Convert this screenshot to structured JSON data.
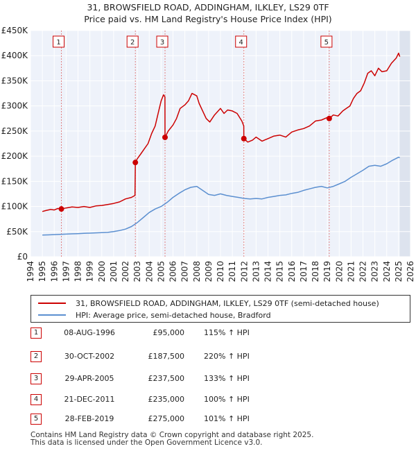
{
  "chart_data": {
    "type": "line",
    "title": "31, BROWSFIELD ROAD, ADDINGHAM, ILKLEY, LS29 0TF",
    "subtitle": "Price paid vs. HM Land Registry's House Price Index (HPI)",
    "xlim": [
      1994,
      2026
    ],
    "ylim": [
      0,
      450000
    ],
    "x_ticks": [
      1994,
      1995,
      1996,
      1997,
      1998,
      1999,
      2000,
      2001,
      2002,
      2003,
      2004,
      2005,
      2006,
      2007,
      2008,
      2009,
      2010,
      2011,
      2012,
      2013,
      2014,
      2015,
      2016,
      2017,
      2018,
      2019,
      2020,
      2021,
      2022,
      2023,
      2024,
      2025,
      2026
    ],
    "x_tick_labels": [
      "1994",
      "1995",
      "1996",
      "1997",
      "1998",
      "1999",
      "2000",
      "2001",
      "2002",
      "2003",
      "2004",
      "2005",
      "2006",
      "2007",
      "2008",
      "2009",
      "2010",
      "2011",
      "2012",
      "2013",
      "2014",
      "2015",
      "2016",
      "2017",
      "2018",
      "2019",
      "2020",
      "2021",
      "2022",
      "2023",
      "2024",
      "2025",
      "2026"
    ],
    "y_ticks": [
      0,
      50000,
      100000,
      150000,
      200000,
      250000,
      300000,
      350000,
      400000,
      450000
    ],
    "y_tick_labels": [
      "£0",
      "£50K",
      "£100K",
      "£150K",
      "£200K",
      "£250K",
      "£300K",
      "£350K",
      "£400K",
      "£450K"
    ],
    "grid": true,
    "future_shade_from": 2025.1,
    "series": [
      {
        "name": "31, BROWSFIELD ROAD, ADDINGHAM, ILKLEY, LS29 0TF (semi-detached house)",
        "color": "#cc0000",
        "x": [
          1995.0,
          1995.3,
          1995.7,
          1996.0,
          1996.3,
          1996.6,
          1997.0,
          1997.5,
          1998.0,
          1998.5,
          1999.0,
          1999.5,
          2000.0,
          2000.5,
          2001.0,
          2001.5,
          2002.0,
          2002.5,
          2002.8,
          2002.83,
          2003.0,
          2003.3,
          2003.6,
          2003.9,
          2004.2,
          2004.5,
          2004.8,
          2005.0,
          2005.2,
          2005.32,
          2005.33,
          2005.6,
          2006.0,
          2006.3,
          2006.6,
          2007.0,
          2007.3,
          2007.6,
          2008.0,
          2008.2,
          2008.5,
          2008.8,
          2009.1,
          2009.5,
          2010.0,
          2010.3,
          2010.6,
          2011.0,
          2011.4,
          2011.8,
          2011.96,
          2011.97,
          2012.3,
          2012.7,
          2013.0,
          2013.5,
          2014.0,
          2014.5,
          2015.0,
          2015.5,
          2016.0,
          2016.5,
          2017.0,
          2017.5,
          2018.0,
          2018.5,
          2019.0,
          2019.16,
          2019.5,
          2019.9,
          2020.3,
          2020.6,
          2020.9,
          2021.2,
          2021.5,
          2021.8,
          2022.1,
          2022.4,
          2022.7,
          2023.0,
          2023.3,
          2023.6,
          2024.0,
          2024.4,
          2024.8,
          2025.0,
          2025.1
        ],
        "values": [
          90000,
          92000,
          94000,
          93000,
          96000,
          95000,
          97000,
          99000,
          98000,
          100000,
          98000,
          101000,
          102000,
          104000,
          106000,
          109000,
          115000,
          118000,
          122000,
          187500,
          195000,
          205000,
          215000,
          225000,
          245000,
          260000,
          290000,
          310000,
          322000,
          318000,
          237500,
          250000,
          262000,
          275000,
          295000,
          302000,
          310000,
          325000,
          320000,
          305000,
          290000,
          275000,
          268000,
          282000,
          295000,
          285000,
          292000,
          290000,
          285000,
          270000,
          260000,
          235000,
          228000,
          232000,
          238000,
          230000,
          235000,
          240000,
          242000,
          238000,
          248000,
          252000,
          255000,
          260000,
          270000,
          272000,
          277000,
          275000,
          282000,
          280000,
          290000,
          295000,
          300000,
          315000,
          325000,
          330000,
          345000,
          365000,
          370000,
          360000,
          375000,
          368000,
          370000,
          385000,
          395000,
          405000,
          398000
        ]
      },
      {
        "name": "HPI: Average price, semi-detached house, Bradford",
        "color": "#5b8fd0",
        "x": [
          1995.0,
          1995.5,
          1996.0,
          1996.5,
          1997.0,
          1997.5,
          1998.0,
          1998.5,
          1999.0,
          1999.5,
          2000.0,
          2000.5,
          2001.0,
          2001.5,
          2002.0,
          2002.5,
          2003.0,
          2003.5,
          2004.0,
          2004.5,
          2005.0,
          2005.5,
          2006.0,
          2006.5,
          2007.0,
          2007.5,
          2008.0,
          2008.5,
          2009.0,
          2009.5,
          2010.0,
          2010.5,
          2011.0,
          2011.5,
          2012.0,
          2012.5,
          2013.0,
          2013.5,
          2014.0,
          2014.5,
          2015.0,
          2015.5,
          2016.0,
          2016.5,
          2017.0,
          2017.5,
          2018.0,
          2018.5,
          2019.0,
          2019.5,
          2020.0,
          2020.5,
          2021.0,
          2021.5,
          2022.0,
          2022.5,
          2023.0,
          2023.5,
          2024.0,
          2024.5,
          2025.0,
          2025.1
        ],
        "values": [
          43000,
          43500,
          44000,
          44500,
          45000,
          45500,
          46000,
          46500,
          47000,
          47500,
          48000,
          48500,
          50000,
          52000,
          55000,
          60000,
          68000,
          78000,
          88000,
          95000,
          100000,
          108000,
          118000,
          126000,
          133000,
          138000,
          140000,
          132000,
          124000,
          122000,
          125000,
          122000,
          120000,
          118000,
          116000,
          115000,
          116000,
          115000,
          118000,
          120000,
          122000,
          123000,
          126000,
          128000,
          132000,
          135000,
          138000,
          140000,
          137000,
          140000,
          145000,
          150000,
          158000,
          165000,
          172000,
          180000,
          182000,
          180000,
          185000,
          192000,
          198000,
          197000
        ]
      }
    ],
    "sale_points": [
      {
        "label": "1",
        "x": 1996.6,
        "value": 95000
      },
      {
        "label": "2",
        "x": 2002.83,
        "value": 187500
      },
      {
        "label": "3",
        "x": 2005.33,
        "value": 237500
      },
      {
        "label": "4",
        "x": 2011.97,
        "value": 235000
      },
      {
        "label": "5",
        "x": 2019.16,
        "value": 275000
      }
    ]
  },
  "legend": {
    "property_label": "31, BROWSFIELD ROAD, ADDINGHAM, ILKLEY, LS29 0TF (semi-detached house)",
    "hpi_label": "HPI: Average price, semi-detached house, Bradford",
    "property_color": "#cc0000",
    "hpi_color": "#5b8fd0"
  },
  "transactions": [
    {
      "num": "1",
      "date": "08-AUG-1996",
      "price": "£95,000",
      "hpi": "115% ↑ HPI"
    },
    {
      "num": "2",
      "date": "30-OCT-2002",
      "price": "£187,500",
      "hpi": "220% ↑ HPI"
    },
    {
      "num": "3",
      "date": "29-APR-2005",
      "price": "£237,500",
      "hpi": "133% ↑ HPI"
    },
    {
      "num": "4",
      "date": "21-DEC-2011",
      "price": "£235,000",
      "hpi": "100% ↑ HPI"
    },
    {
      "num": "5",
      "date": "28-FEB-2019",
      "price": "£275,000",
      "hpi": "101% ↑ HPI"
    }
  ],
  "footer": {
    "line1": "Contains HM Land Registry data © Crown copyright and database right 2025.",
    "line2": "This data is licensed under the Open Government Licence v3.0."
  },
  "colors": {
    "plot_background": "#eef2fa",
    "future_shade": "#dde3ee",
    "grid": "#ffffff",
    "marker_line": "#e08080"
  }
}
